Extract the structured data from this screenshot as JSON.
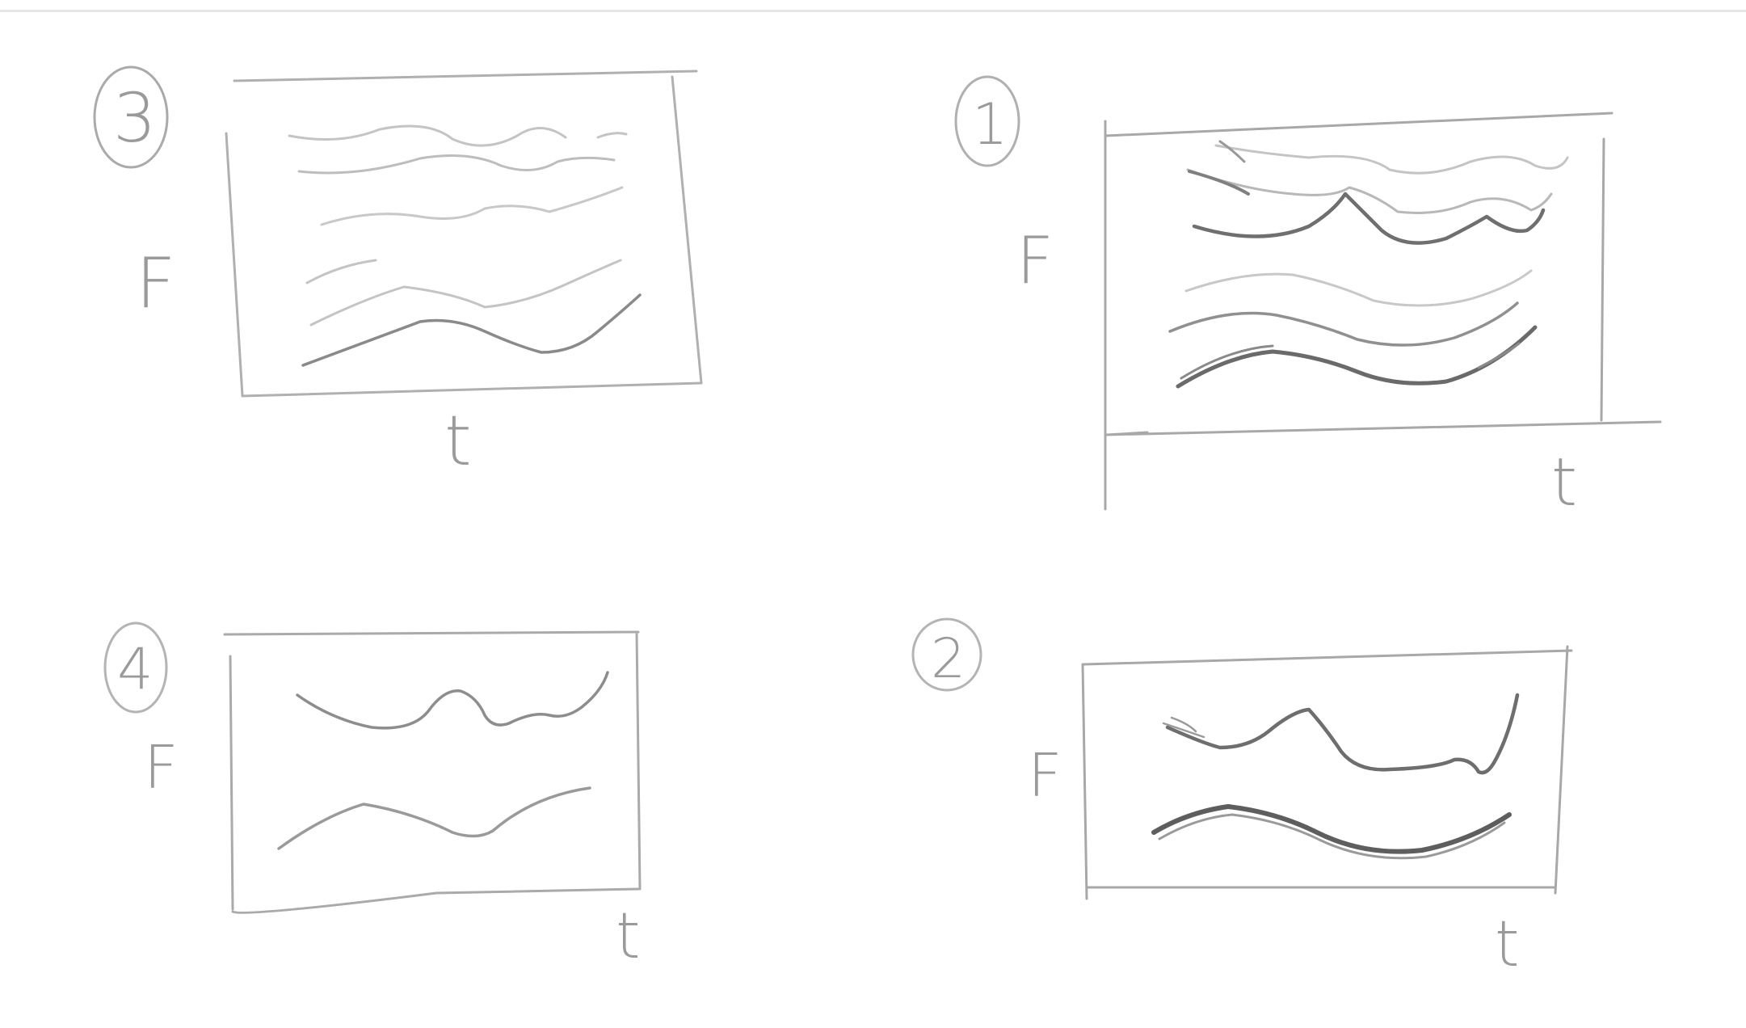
{
  "sketches": [
    {
      "number": "3",
      "y_label": "F",
      "x_label": "t"
    },
    {
      "number": "1",
      "y_label": "F",
      "x_label": "t"
    },
    {
      "number": "4",
      "y_label": "F",
      "x_label": "t"
    },
    {
      "number": "2",
      "y_label": "F",
      "x_label": "t"
    }
  ],
  "colors": {
    "pencil_dark": "#6f6f6f",
    "pencil_mid": "#9c9c9c",
    "pencil_light": "#c4c4c4",
    "background": "#ffffff"
  }
}
